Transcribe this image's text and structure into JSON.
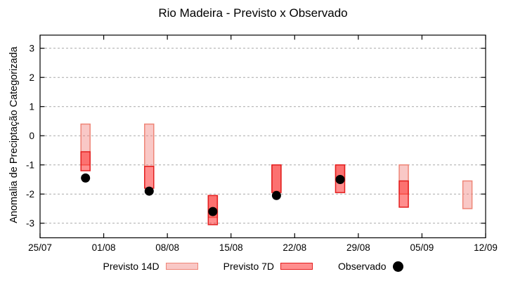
{
  "chart_data": {
    "type": "bar",
    "subtype": "range-bars-with-points",
    "title": "Rio Madeira - Previsto x Observado",
    "ylabel": "Anomalia de Preciptação Categorizada",
    "xlabel": "",
    "x_tick_labels": [
      "25/07",
      "01/08",
      "08/08",
      "15/08",
      "22/08",
      "29/08",
      "05/09",
      "12/09"
    ],
    "x_tick_days": [
      0,
      7,
      14,
      21,
      28,
      35,
      42,
      49
    ],
    "x_range_days": [
      0,
      49
    ],
    "y_ticks": [
      3,
      2,
      1,
      0,
      -1,
      -2,
      -3
    ],
    "ylim": [
      -3.5,
      3.45
    ],
    "grid": "horizontal dashed gray lines at integer y values",
    "legend_position": "bottom center",
    "series": [
      {
        "name": "Previsto 14D",
        "type": "range-bar",
        "fill": "rgba(240,125,118,0.42)",
        "stroke": "#ee8577"
      },
      {
        "name": "Previsto 7D",
        "type": "range-bar",
        "fill": "rgba(255,15,15,0.47)",
        "stroke": "#e31f1f"
      },
      {
        "name": "Observado",
        "type": "point",
        "color": "#000000"
      }
    ],
    "clusters": [
      {
        "date": "30/07",
        "day": 5,
        "previsto_14d": [
          0.4,
          -1.0
        ],
        "previsto_7d": [
          -0.55,
          -1.2
        ],
        "observado": -1.45
      },
      {
        "date": "06/08",
        "day": 12,
        "previsto_14d": [
          0.4,
          -1.05
        ],
        "previsto_7d": [
          -1.05,
          -1.8
        ],
        "observado": -1.9
      },
      {
        "date": "13/08",
        "day": 19,
        "previsto_14d": [
          -2.05,
          -2.8
        ],
        "previsto_7d": [
          -2.05,
          -3.05
        ],
        "observado": -2.6
      },
      {
        "date": "20/08",
        "day": 26,
        "previsto_14d": [
          -1.0,
          -1.9
        ],
        "previsto_7d": [
          -1.0,
          -1.95
        ],
        "observado": -2.05
      },
      {
        "date": "27/08",
        "day": 33,
        "previsto_14d": [
          -1.0,
          -1.55
        ],
        "previsto_7d": [
          -1.0,
          -1.95
        ],
        "observado": -1.5
      },
      {
        "date": "03/09",
        "day": 40,
        "previsto_14d": [
          -1.0,
          -2.0
        ],
        "previsto_7d": [
          -1.55,
          -2.45
        ],
        "observado": null
      },
      {
        "date": "10/09",
        "day": 47,
        "previsto_14d": [
          -1.55,
          -2.5
        ],
        "previsto_7d": null,
        "observado": null
      }
    ]
  }
}
